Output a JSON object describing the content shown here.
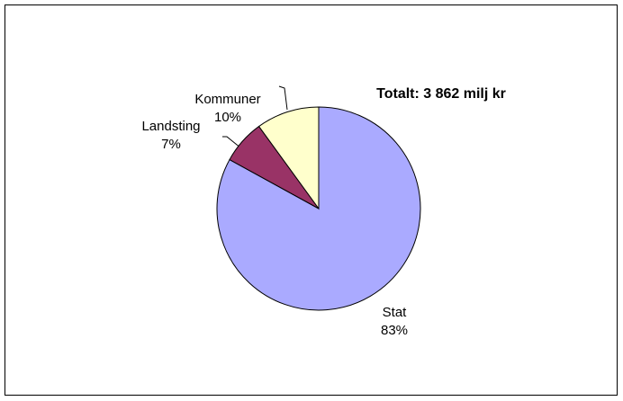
{
  "chart_data": {
    "type": "pie",
    "annotation": "Totalt: 3 862 milj kr",
    "categories": [
      "Stat",
      "Landsting",
      "Kommuner"
    ],
    "values": [
      83,
      7,
      10
    ],
    "value_labels": [
      "83%",
      "7%",
      "10%"
    ],
    "colors": [
      "#aaaaff",
      "#993366",
      "#ffffcc"
    ]
  }
}
